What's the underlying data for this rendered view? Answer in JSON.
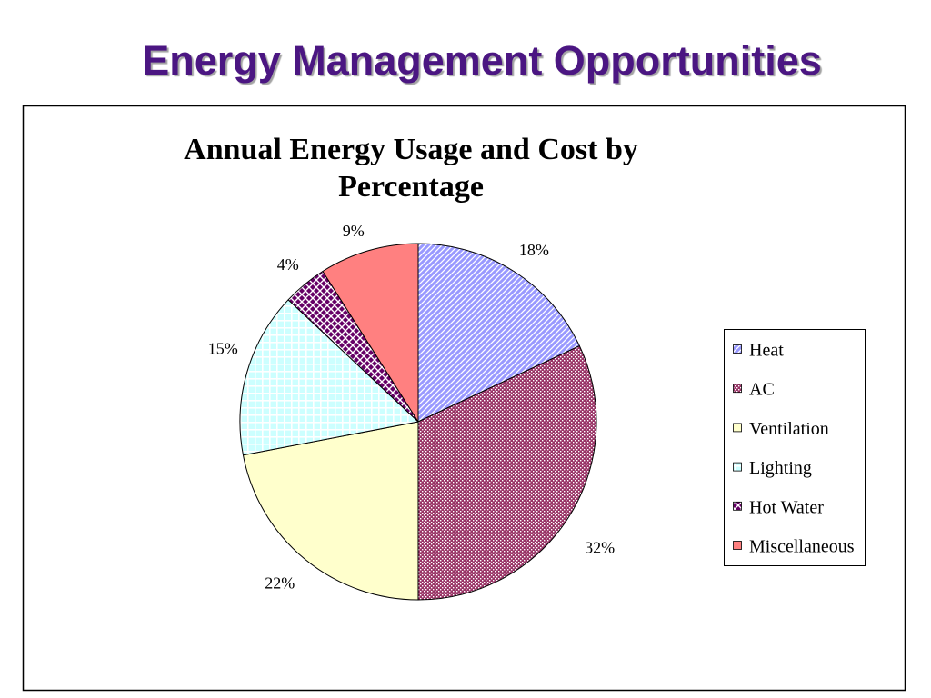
{
  "slide": {
    "title": "Energy Management Opportunities",
    "title_color": "#4b1682"
  },
  "chart_data": {
    "type": "pie",
    "title": "Annual Energy Usage and Cost by Percentage",
    "categories": [
      "Heat",
      "AC",
      "Ventilation",
      "Lighting",
      "Hot Water",
      "Miscellaneous"
    ],
    "values": [
      18,
      32,
      22,
      15,
      4,
      9
    ],
    "data_labels": [
      "18%",
      "32%",
      "22%",
      "15%",
      "4%",
      "9%"
    ],
    "colors": [
      "#9999FF",
      "#993366",
      "#FFFFCC",
      "#CCFFFF",
      "#660066",
      "#FF8080"
    ],
    "legend": "right"
  }
}
